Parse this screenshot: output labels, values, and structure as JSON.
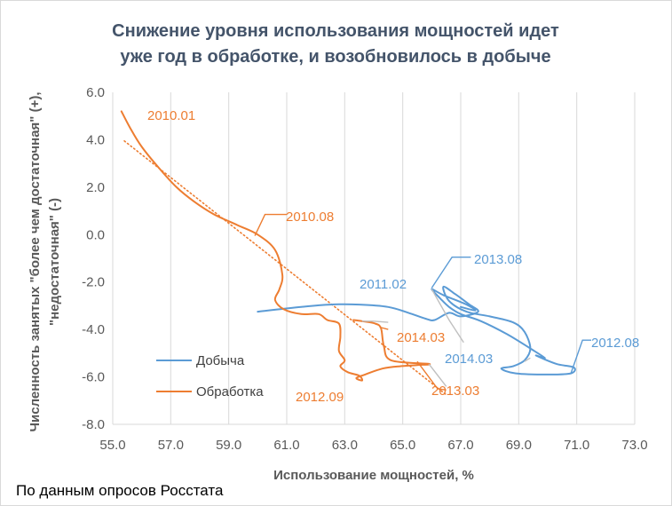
{
  "chart_data": {
    "type": "scatter",
    "title_lines": [
      "Снижение уровня использования мощностей идет",
      "уже год в обработке, и возобновилось в добыче"
    ],
    "xlabel": "Использование мощностей, %",
    "ylabel_lines": [
      "Численность занятых \"более чем достаточная\" (+),",
      "\"недостаточная\" (-)"
    ],
    "xlim": [
      55.0,
      73.0
    ],
    "ylim": [
      -8.0,
      6.0
    ],
    "x_ticks": [
      55.0,
      57.0,
      59.0,
      61.0,
      63.0,
      65.0,
      67.0,
      69.0,
      71.0,
      73.0
    ],
    "x_tick_labels": [
      "55.0",
      "57.0",
      "59.0",
      "61.0",
      "63.0",
      "65.0",
      "67.0",
      "69.0",
      "71.0",
      "73.0"
    ],
    "y_ticks": [
      6.0,
      4.0,
      2.0,
      0.0,
      -2.0,
      -4.0,
      -6.0,
      -8.0
    ],
    "y_tick_labels": [
      "6.0",
      "4.0",
      "2.0",
      "0.0",
      "-2.0",
      "-4.0",
      "-6.0",
      "-8.0"
    ],
    "grid": "vertical",
    "legend_position": "lower-left",
    "series": [
      {
        "name": "Добыча",
        "color": "#5b9bd5",
        "x": [
          60.0,
          61.5,
          62.5,
          63.5,
          64.5,
          65.2,
          65.8,
          66.1,
          66.6,
          67.0,
          67.6,
          67.3,
          66.8,
          66.4,
          66.6,
          67.2,
          68.0,
          68.8,
          69.2,
          69.4,
          69.2,
          68.8,
          68.4,
          68.9,
          70.0,
          70.8,
          70.9,
          70.3,
          69.6,
          69.9,
          69.4,
          68.6,
          67.7,
          67.0,
          66.6,
          66.3,
          66.0,
          66.4,
          67.2,
          67.5,
          67.0
        ],
        "y": [
          -3.25,
          -3.05,
          -2.95,
          -2.95,
          -3.05,
          -3.3,
          -3.55,
          -3.6,
          -3.3,
          -3.45,
          -3.25,
          -2.95,
          -2.5,
          -2.2,
          -2.8,
          -3.25,
          -3.45,
          -3.7,
          -4.1,
          -4.8,
          -5.3,
          -5.55,
          -5.65,
          -5.85,
          -5.9,
          -5.85,
          -5.6,
          -5.45,
          -5.1,
          -5.2,
          -4.8,
          -4.2,
          -3.65,
          -3.35,
          -3.05,
          -2.7,
          -2.3,
          -2.55,
          -2.95,
          -3.2,
          -3.05
        ]
      },
      {
        "name": "Обработка",
        "color": "#ed7d31",
        "x": [
          55.3,
          55.6,
          56.0,
          56.6,
          57.2,
          57.8,
          58.5,
          59.3,
          60.0,
          60.6,
          60.85,
          60.75,
          60.6,
          60.9,
          61.5,
          62.1,
          62.4,
          62.8,
          62.85,
          62.8,
          63.0,
          62.85,
          63.1,
          63.5,
          63.6,
          63.4,
          63.7,
          64.3,
          64.9,
          65.5,
          65.9,
          64.6,
          64.35,
          64.25,
          64.05,
          63.6,
          63.3
        ],
        "y": [
          5.2,
          4.5,
          3.7,
          2.8,
          2.0,
          1.4,
          0.85,
          0.4,
          0.0,
          -0.65,
          -1.7,
          -2.3,
          -2.75,
          -3.15,
          -3.35,
          -3.35,
          -3.6,
          -3.75,
          -4.3,
          -4.9,
          -5.3,
          -5.55,
          -5.8,
          -5.95,
          -6.15,
          -6.05,
          -5.9,
          -5.65,
          -5.55,
          -5.5,
          -5.45,
          -5.3,
          -4.7,
          -3.95,
          -3.75,
          -3.65,
          -3.6
        ]
      }
    ],
    "trendline": {
      "series": "Обработка",
      "style": "dotted",
      "x": [
        55.4,
        66.5
      ],
      "y": [
        3.95,
        -6.75
      ]
    },
    "annotations": [
      {
        "text": "2010.01",
        "color": "#ed7d31"
      },
      {
        "text": "2010.08",
        "color": "#ed7d31"
      },
      {
        "text": "2012.09",
        "color": "#ed7d31"
      },
      {
        "text": "2014.03",
        "color": "#ed7d31"
      },
      {
        "text": "2013.03",
        "color": "#ed7d31"
      },
      {
        "text": "2011.02",
        "color": "#5b9bd5"
      },
      {
        "text": "2013.08",
        "color": "#5b9bd5"
      },
      {
        "text": "2014.03",
        "color": "#5b9bd5"
      },
      {
        "text": "2012.08",
        "color": "#5b9bd5"
      }
    ]
  },
  "footer": {
    "source": "По данным опросов Росстата"
  }
}
